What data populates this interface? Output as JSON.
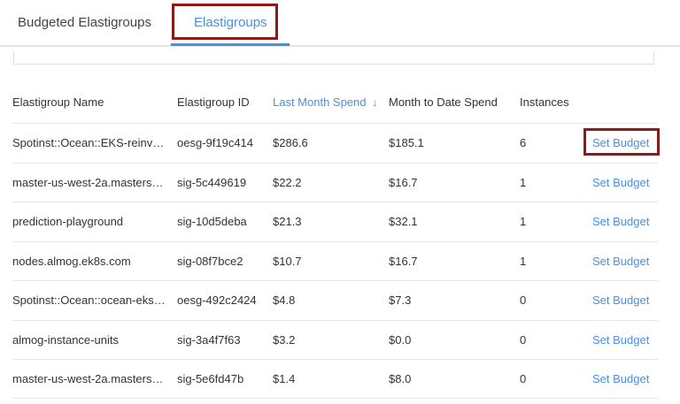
{
  "tabs": [
    {
      "label": "Budgeted Elastigroups",
      "active": false
    },
    {
      "label": "Elastigroups",
      "active": true
    }
  ],
  "accent_color": "#4a90e2",
  "highlight_color": "#8b1a1a",
  "table": {
    "columns": [
      "Elastigroup Name",
      "Elastigroup ID",
      "Last Month Spend",
      "Month to Date Spend",
      "Instances"
    ],
    "sorted_column": "Last Month Spend",
    "sort_icon": "arrow-down-icon",
    "sort_glyph": "↓",
    "rows": [
      {
        "name": "Spotinst::Ocean::EKS-reinv…",
        "id": "oesg-9f19c414",
        "last": "$286.6",
        "mtd": "$185.1",
        "instances": "6",
        "action": "Set Budget"
      },
      {
        "name": "master-us-west-2a.masters…",
        "id": "sig-5c449619",
        "last": "$22.2",
        "mtd": "$16.7",
        "instances": "1",
        "action": "Set Budget"
      },
      {
        "name": "prediction-playground",
        "id": "sig-10d5deba",
        "last": "$21.3",
        "mtd": "$32.1",
        "instances": "1",
        "action": "Set Budget"
      },
      {
        "name": "nodes.almog.ek8s.com",
        "id": "sig-08f7bce2",
        "last": "$10.7",
        "mtd": "$16.7",
        "instances": "1",
        "action": "Set Budget"
      },
      {
        "name": "Spotinst::Ocean::ocean-eks…",
        "id": "oesg-492c2424",
        "last": "$4.8",
        "mtd": "$7.3",
        "instances": "0",
        "action": "Set Budget"
      },
      {
        "name": "almog-instance-units",
        "id": "sig-3a4f7f63",
        "last": "$3.2",
        "mtd": "$0.0",
        "instances": "0",
        "action": "Set Budget"
      },
      {
        "name": "master-us-west-2a.masters…",
        "id": "sig-5e6fd47b",
        "last": "$1.4",
        "mtd": "$8.0",
        "instances": "0",
        "action": "Set Budget"
      }
    ]
  }
}
